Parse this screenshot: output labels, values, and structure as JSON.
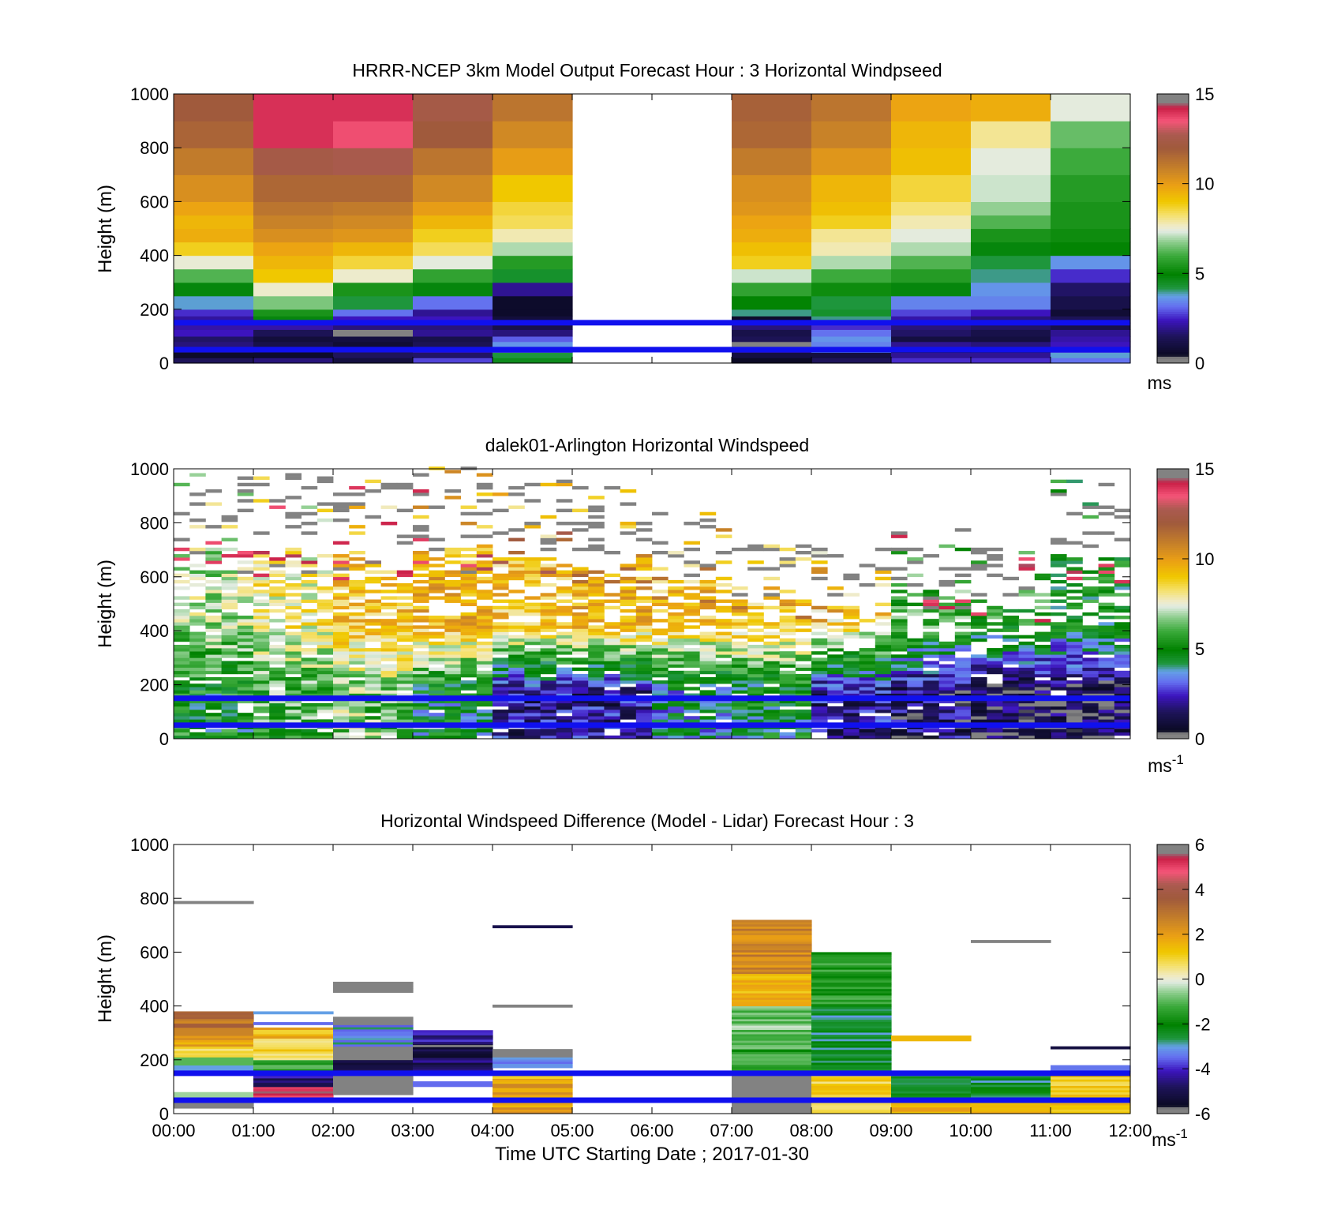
{
  "xlabel": "Time UTC  Starting Date ; 2017-01-30",
  "time_ticks": [
    "00:00",
    "01:00",
    "02:00",
    "03:00",
    "04:00",
    "05:00",
    "06:00",
    "07:00",
    "08:00",
    "09:00",
    "10:00",
    "11:00",
    "12:00"
  ],
  "reference_lines_m": [
    50,
    150
  ],
  "chart_data": [
    {
      "type": "heatmap",
      "title": "HRRR-NCEP 3km Model Output   Forecast Hour : 3 Horizontal Windpseed",
      "ylabel": "Height (m)",
      "xlim_hours": [
        0,
        12
      ],
      "ylim": [
        0,
        1000
      ],
      "yticks": [
        "0",
        "200",
        "400",
        "600",
        "800",
        "1000"
      ],
      "colorbar": {
        "range": [
          0,
          15
        ],
        "ticks": [
          "0",
          "5",
          "10",
          "15"
        ],
        "unit": "ms"
      },
      "levels_m": [
        0,
        20,
        40,
        60,
        80,
        100,
        125,
        150,
        175,
        200,
        250,
        300,
        350,
        400,
        450,
        500,
        550,
        600,
        700,
        800,
        900,
        1000
      ],
      "missing_hours": [
        5,
        6
      ],
      "hourly_columns": [
        {
          "hour": 0,
          "values": [
            1.5,
            0.6,
            1.2,
            1.8,
            1.6,
            2.4,
            2.2,
            2.1,
            2.6,
            3.8,
            4.8,
            6.2,
            7.5,
            8.8,
            9.6,
            9.4,
            9.8,
            10.4,
            11.0,
            11.7,
            12.0
          ]
        },
        {
          "hour": 1,
          "values": [
            1.8,
            0.6,
            0.7,
            1.2,
            0.9,
            1.4,
            2.2,
            4.8,
            5.4,
            6.6,
            7.6,
            9.0,
            9.4,
            9.8,
            10.4,
            10.8,
            11.2,
            11.6,
            12.4,
            14.0,
            14.0
          ]
        },
        {
          "hour": 2,
          "values": [
            1.0,
            1.5,
            1.6,
            0.8,
            1.0,
            0.0,
            1.8,
            2.4,
            3.2,
            4.2,
            5.4,
            7.6,
            8.6,
            9.4,
            10.2,
            10.6,
            11.0,
            11.6,
            12.6,
            13.6,
            14.0
          ]
        },
        {
          "hour": 3,
          "values": [
            2.8,
            1.6,
            2.2,
            1.4,
            1.2,
            2.0,
            1.8,
            2.4,
            2.0,
            3.2,
            4.8,
            5.8,
            7.4,
            8.4,
            8.8,
            9.4,
            10.0,
            10.6,
            11.2,
            12.0,
            12.4
          ]
        },
        {
          "hour": 4,
          "values": [
            4.6,
            4.2,
            2.8,
            3.6,
            3.0,
            1.8,
            1.2,
            0.9,
            0.6,
            0.6,
            2.0,
            4.4,
            5.6,
            7.0,
            7.8,
            8.4,
            8.6,
            9.0,
            10.0,
            10.6,
            11.2
          ]
        },
        {
          "hour": 7,
          "values": [
            0.5,
            1.0,
            2.0,
            0.0,
            1.4,
            1.2,
            1.8,
            0.6,
            4.0,
            5.0,
            5.8,
            7.2,
            8.8,
            9.2,
            9.6,
            9.8,
            10.2,
            10.4,
            11.0,
            11.6,
            11.8
          ]
        },
        {
          "hour": 8,
          "values": [
            1.5,
            1.0,
            3.6,
            3.4,
            3.6,
            3.2,
            2.6,
            4.0,
            4.4,
            4.2,
            5.2,
            6.0,
            7.0,
            7.8,
            8.0,
            8.8,
            9.2,
            9.4,
            10.2,
            10.8,
            11.2
          ]
        },
        {
          "hour": 9,
          "values": [
            2.6,
            2.0,
            1.4,
            2.0,
            1.0,
            1.6,
            1.8,
            2.2,
            2.8,
            3.4,
            4.8,
            5.6,
            6.2,
            7.0,
            7.4,
            7.8,
            8.2,
            8.6,
            9.2,
            9.4,
            9.8
          ]
        },
        {
          "hour": 10,
          "values": [
            2.6,
            2.0,
            1.6,
            1.8,
            1.0,
            1.2,
            1.6,
            1.8,
            2.4,
            3.4,
            3.6,
            4.0,
            4.2,
            4.8,
            5.4,
            6.2,
            6.8,
            7.2,
            7.4,
            8.0,
            9.6
          ]
        },
        {
          "hour": 11,
          "values": [
            3.2,
            3.8,
            2.8,
            2.4,
            2.2,
            2.0,
            1.2,
            1.4,
            0.8,
            1.2,
            1.6,
            2.6,
            3.6,
            5.0,
            5.2,
            5.4,
            5.4,
            5.6,
            6.0,
            6.4,
            7.4
          ]
        }
      ]
    },
    {
      "type": "heatmap",
      "title": "dalek01-Arlington  Horizontal Windspeed",
      "ylabel": "Height (m)",
      "xlim_hours": [
        0,
        12
      ],
      "ylim": [
        0,
        1000
      ],
      "yticks": [
        "0",
        "200",
        "400",
        "600",
        "800",
        "1000"
      ],
      "colorbar": {
        "range": [
          0,
          15
        ],
        "ticks": [
          "0",
          "5",
          "10",
          "15"
        ],
        "unit": "ms",
        "unit_exponent": "-1"
      },
      "profile_interval_hours": 0.2,
      "gate_spacing_m": 12,
      "hourly_summary": [
        {
          "hour": 0,
          "low_ms": 5.0,
          "mid_ms": 7.0,
          "high_ms": 15.0,
          "top_m": 1000
        },
        {
          "hour": 1,
          "low_ms": 6.0,
          "mid_ms": 8.0,
          "high_ms": 15.0,
          "top_m": 980
        },
        {
          "hour": 2,
          "low_ms": 6.5,
          "mid_ms": 9.0,
          "high_ms": 15.0,
          "top_m": 950
        },
        {
          "hour": 3,
          "low_ms": 4.5,
          "mid_ms": 9.5,
          "high_ms": 15.0,
          "top_m": 1000
        },
        {
          "hour": 4,
          "low_ms": 2.0,
          "mid_ms": 9.0,
          "high_ms": 13.0,
          "top_m": 950
        },
        {
          "hour": 5,
          "low_ms": 2.0,
          "mid_ms": 9.5,
          "high_ms": 12.0,
          "top_m": 930
        },
        {
          "hour": 6,
          "low_ms": 4.0,
          "mid_ms": 9.0,
          "high_ms": 12.0,
          "top_m": 830
        },
        {
          "hour": 7,
          "low_ms": 4.5,
          "mid_ms": 9.0,
          "high_ms": 12.0,
          "top_m": 720
        },
        {
          "hour": 8,
          "low_ms": 2.0,
          "mid_ms": 8.5,
          "high_ms": 11.0,
          "top_m": 700
        },
        {
          "hour": 9,
          "low_ms": 1.5,
          "mid_ms": 6.0,
          "high_ms": 15.0,
          "top_m": 780
        },
        {
          "hour": 10,
          "low_ms": 1.0,
          "mid_ms": 5.5,
          "high_ms": 15.0,
          "top_m": 700
        },
        {
          "hour": 11,
          "low_ms": 1.0,
          "mid_ms": 5.0,
          "high_ms": 15.0,
          "top_m": 950
        }
      ]
    },
    {
      "type": "heatmap",
      "title": "Horizontal Windspeed Difference (Model - Lidar) Forecast Hour : 3",
      "ylabel": "Height (m)",
      "xlim_hours": [
        0,
        12
      ],
      "ylim": [
        0,
        1000
      ],
      "yticks": [
        "0",
        "200",
        "400",
        "600",
        "800",
        "1000"
      ],
      "colorbar": {
        "range": [
          -6,
          6
        ],
        "ticks": [
          "-6",
          "-4",
          "-2",
          "0",
          "2",
          "4",
          "6"
        ],
        "unit": "ms",
        "unit_exponent": "-1"
      },
      "segments": [
        {
          "hour": 0,
          "bottom_m": 20,
          "top_m": 60,
          "value_ms": -6.0
        },
        {
          "hour": 0,
          "bottom_m": 60,
          "top_m": 80,
          "value_ms": -0.5
        },
        {
          "hour": 0,
          "bottom_m": 150,
          "top_m": 180,
          "value_ms": -3.0
        },
        {
          "hour": 0,
          "bottom_m": 180,
          "top_m": 210,
          "value_ms": -1.0
        },
        {
          "hour": 0,
          "bottom_m": 210,
          "top_m": 250,
          "value_ms": 1.0
        },
        {
          "hour": 0,
          "bottom_m": 250,
          "top_m": 290,
          "value_ms": 1.8
        },
        {
          "hour": 0,
          "bottom_m": 290,
          "top_m": 320,
          "value_ms": 2.6
        },
        {
          "hour": 0,
          "bottom_m": 320,
          "top_m": 380,
          "value_ms": 3.0
        },
        {
          "hour": 0,
          "bottom_m": 780,
          "top_m": 790,
          "value_ms": 6.0
        },
        {
          "hour": 1,
          "bottom_m": 60,
          "top_m": 100,
          "value_ms": 5.5
        },
        {
          "hour": 1,
          "bottom_m": 100,
          "top_m": 150,
          "value_ms": -4.5
        },
        {
          "hour": 1,
          "bottom_m": 150,
          "top_m": 200,
          "value_ms": -1.2
        },
        {
          "hour": 1,
          "bottom_m": 200,
          "top_m": 280,
          "value_ms": 0.8
        },
        {
          "hour": 1,
          "bottom_m": 280,
          "top_m": 320,
          "value_ms": 1.5
        },
        {
          "hour": 1,
          "bottom_m": 330,
          "top_m": 340,
          "value_ms": -3.5
        },
        {
          "hour": 1,
          "bottom_m": 370,
          "top_m": 380,
          "value_ms": -3.0
        },
        {
          "hour": 2,
          "bottom_m": 70,
          "top_m": 150,
          "value_ms": 6.0
        },
        {
          "hour": 2,
          "bottom_m": 150,
          "top_m": 200,
          "value_ms": -5.0
        },
        {
          "hour": 2,
          "bottom_m": 200,
          "top_m": 250,
          "value_ms": 6.0
        },
        {
          "hour": 2,
          "bottom_m": 250,
          "top_m": 330,
          "value_ms": -3.0
        },
        {
          "hour": 2,
          "bottom_m": 330,
          "top_m": 360,
          "value_ms": 6.0
        },
        {
          "hour": 2,
          "bottom_m": 450,
          "top_m": 490,
          "value_ms": 6.0
        },
        {
          "hour": 3,
          "bottom_m": 100,
          "top_m": 120,
          "value_ms": -3.5
        },
        {
          "hour": 3,
          "bottom_m": 150,
          "top_m": 200,
          "value_ms": -4.8
        },
        {
          "hour": 3,
          "bottom_m": 200,
          "top_m": 260,
          "value_ms": -5.2
        },
        {
          "hour": 3,
          "bottom_m": 260,
          "top_m": 310,
          "value_ms": -4.2
        },
        {
          "hour": 4,
          "bottom_m": 0,
          "top_m": 130,
          "value_ms": 2.0
        },
        {
          "hour": 4,
          "bottom_m": 130,
          "top_m": 150,
          "value_ms": 1.0
        },
        {
          "hour": 4,
          "bottom_m": 170,
          "top_m": 210,
          "value_ms": -3.2
        },
        {
          "hour": 4,
          "bottom_m": 210,
          "top_m": 240,
          "value_ms": -5.8
        },
        {
          "hour": 4,
          "bottom_m": 395,
          "top_m": 405,
          "value_ms": 6.0
        },
        {
          "hour": 4,
          "bottom_m": 690,
          "top_m": 700,
          "value_ms": -5.0
        },
        {
          "hour": 7,
          "bottom_m": 0,
          "top_m": 150,
          "value_ms": -6.0
        },
        {
          "hour": 7,
          "bottom_m": 150,
          "top_m": 240,
          "value_ms": -1.5
        },
        {
          "hour": 7,
          "bottom_m": 240,
          "top_m": 400,
          "value_ms": -0.8
        },
        {
          "hour": 7,
          "bottom_m": 400,
          "top_m": 520,
          "value_ms": 1.5
        },
        {
          "hour": 7,
          "bottom_m": 520,
          "top_m": 720,
          "value_ms": 2.5
        },
        {
          "hour": 8,
          "bottom_m": 0,
          "top_m": 150,
          "value_ms": 1.0
        },
        {
          "hour": 8,
          "bottom_m": 150,
          "top_m": 400,
          "value_ms": -2.6
        },
        {
          "hour": 8,
          "bottom_m": 400,
          "top_m": 600,
          "value_ms": -1.6
        },
        {
          "hour": 9,
          "bottom_m": 0,
          "top_m": 60,
          "value_ms": 1.5
        },
        {
          "hour": 9,
          "bottom_m": 60,
          "top_m": 160,
          "value_ms": -2.4
        },
        {
          "hour": 9,
          "bottom_m": 270,
          "top_m": 290,
          "value_ms": 1.5
        },
        {
          "hour": 10,
          "bottom_m": 0,
          "top_m": 60,
          "value_ms": 1.5
        },
        {
          "hour": 10,
          "bottom_m": 60,
          "top_m": 160,
          "value_ms": -2.4
        },
        {
          "hour": 10,
          "bottom_m": 635,
          "top_m": 645,
          "value_ms": 6.0
        },
        {
          "hour": 11,
          "bottom_m": 0,
          "top_m": 150,
          "value_ms": 1.2
        },
        {
          "hour": 11,
          "bottom_m": 150,
          "top_m": 180,
          "value_ms": -3.4
        },
        {
          "hour": 11,
          "bottom_m": 240,
          "top_m": 250,
          "value_ms": -5.2
        }
      ]
    }
  ]
}
